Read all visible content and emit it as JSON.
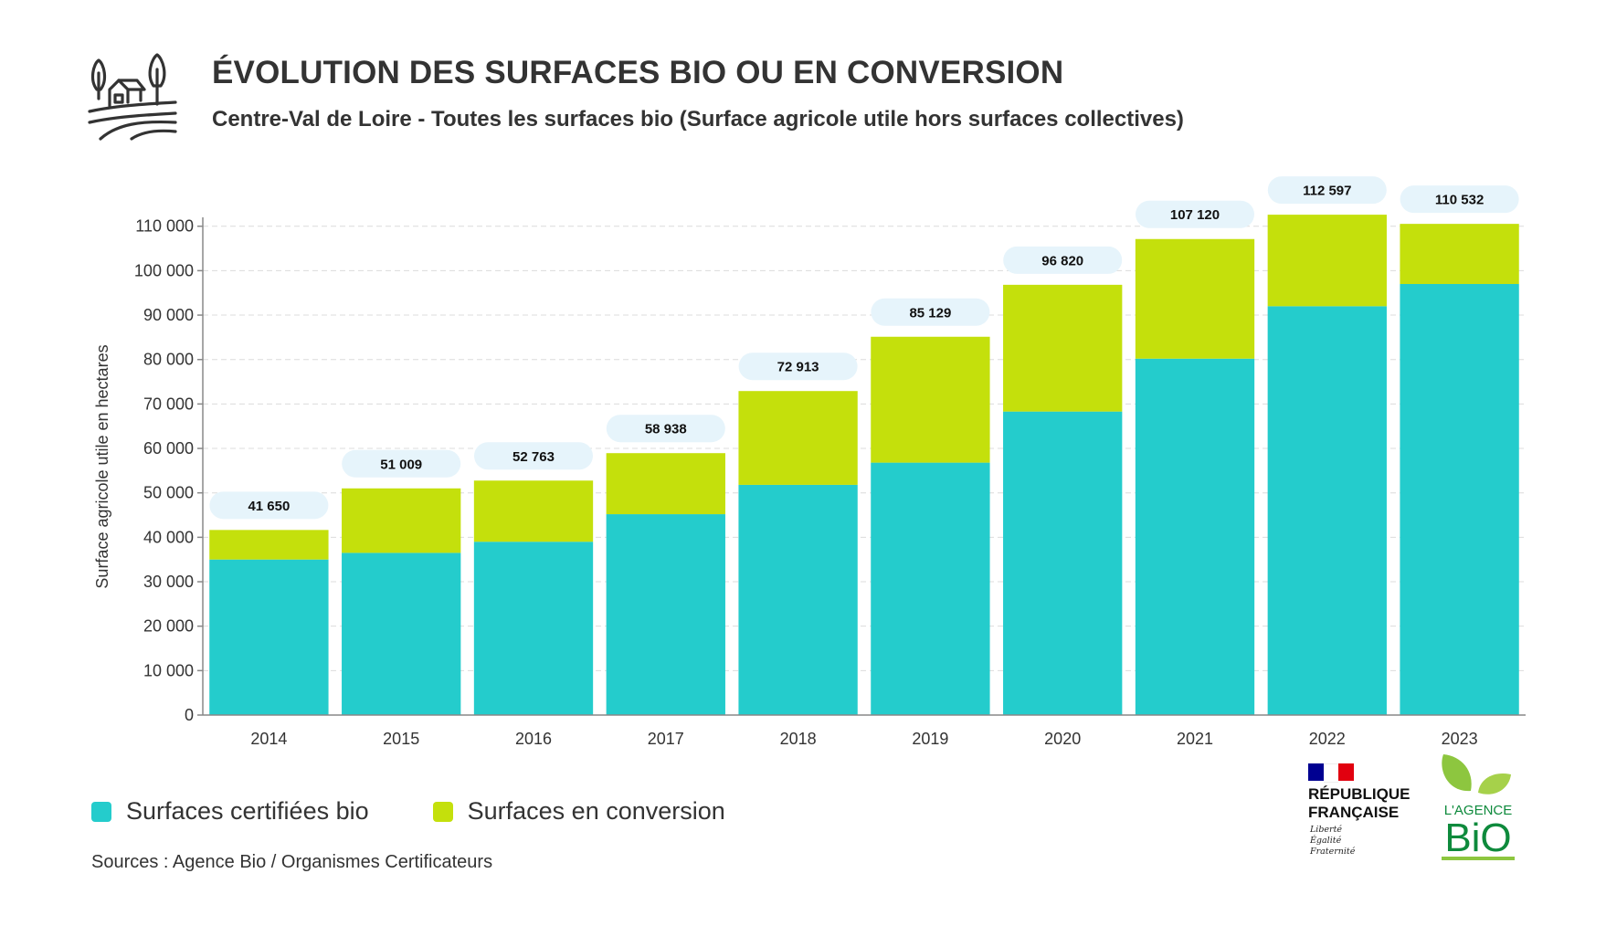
{
  "header": {
    "icon": "farm-landscape-icon",
    "title": "ÉVOLUTION DES SURFACES BIO OU EN CONVERSION",
    "subtitle": "Centre-Val de Loire - Toutes les surfaces bio (Surface agricole utile hors surfaces collectives)"
  },
  "chart_data": {
    "type": "bar",
    "stacked": true,
    "categories": [
      "2014",
      "2015",
      "2016",
      "2017",
      "2018",
      "2019",
      "2020",
      "2021",
      "2022",
      "2023"
    ],
    "series": [
      {
        "name": "Surfaces certifiées bio",
        "color": "#24CCCC",
        "values": [
          35000,
          36500,
          39000,
          45200,
          51800,
          56800,
          68300,
          80200,
          92000,
          97000
        ]
      },
      {
        "name": "Surfaces en conversion",
        "color": "#C4E00C",
        "values": [
          6650,
          14509,
          13763,
          13738,
          21113,
          28329,
          28520,
          26920,
          20597,
          13532
        ]
      }
    ],
    "totals": [
      41650,
      51009,
      52763,
      58938,
      72913,
      85129,
      96820,
      107120,
      112597,
      110532
    ],
    "total_labels": [
      "41 650",
      "51 009",
      "52 763",
      "58 938",
      "72 913",
      "85 129",
      "96 820",
      "107 120",
      "112 597",
      "110 532"
    ],
    "ylabel": "Surface agricole utile en hectares",
    "xlabel": "",
    "ylim": [
      0,
      112000
    ],
    "yticks": [
      0,
      10000,
      20000,
      30000,
      40000,
      50000,
      60000,
      70000,
      80000,
      90000,
      100000,
      110000
    ],
    "ytick_labels": [
      "0",
      "10 000",
      "20 000",
      "30 000",
      "40 000",
      "50 000",
      "60 000",
      "70 000",
      "80 000",
      "90 000",
      "100 000",
      "110 000"
    ],
    "grid": true,
    "legend_position": "bottom-left",
    "total_label_color": "#E6F4FB"
  },
  "legend": {
    "items": [
      {
        "label": "Surfaces certifiées bio",
        "color": "#24CCCC"
      },
      {
        "label": "Surfaces en conversion",
        "color": "#C4E00C"
      }
    ]
  },
  "footer": {
    "sources": "Sources : Agence Bio / Organismes Certificateurs"
  },
  "logos": {
    "republique": {
      "name_line1": "RÉPUBLIQUE",
      "name_line2": "FRANÇAISE",
      "motto": [
        "Liberté",
        "Égalité",
        "Fraternité"
      ],
      "flag_colors": [
        "#000091",
        "#FFFFFF",
        "#E1000F"
      ]
    },
    "agence": {
      "line1": "L'AGENCE",
      "line2": "BiO",
      "color": "#0E8A3C",
      "leaf_color": "#8DC63F"
    }
  }
}
